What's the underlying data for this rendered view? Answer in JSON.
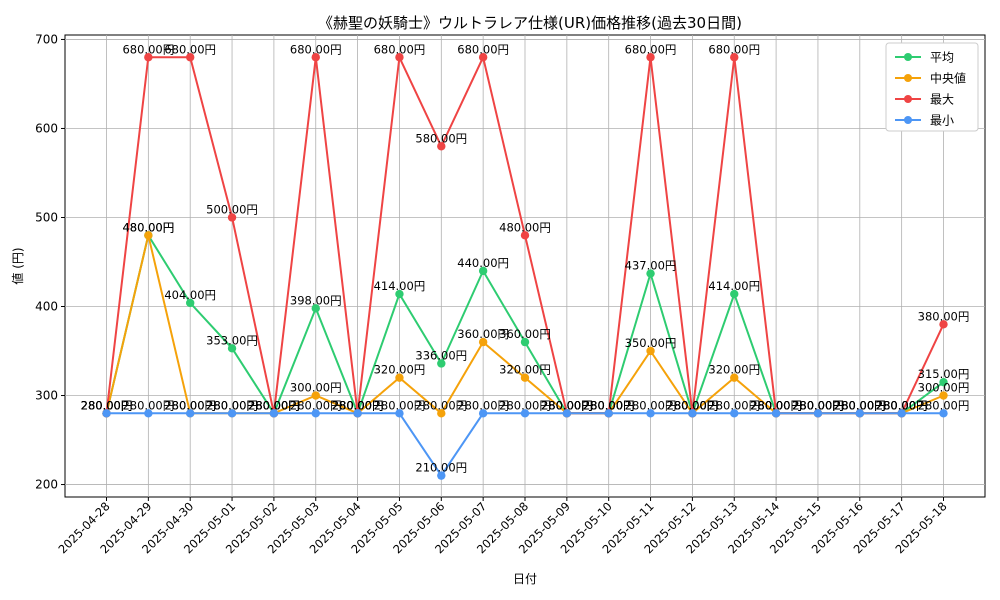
{
  "chart_data": {
    "type": "line",
    "title": "《赫聖の妖騎士》ウルトラレア仕様(UR)価格推移(過去30日間)",
    "xlabel": "日付",
    "ylabel": "値 (円)",
    "ylim": [
      186,
      705
    ],
    "yticks": [
      200,
      300,
      400,
      500,
      600,
      700
    ],
    "grid": true,
    "legend_position": "top-right",
    "label_suffix": "円",
    "categories": [
      "2025-04-28",
      "2025-04-29",
      "2025-04-30",
      "2025-05-01",
      "2025-05-02",
      "2025-05-03",
      "2025-05-04",
      "2025-05-05",
      "2025-05-06",
      "2025-05-07",
      "2025-05-08",
      "2025-05-09",
      "2025-05-10",
      "2025-05-11",
      "2025-05-12",
      "2025-05-13",
      "2025-05-14",
      "2025-05-15",
      "2025-05-16",
      "2025-05-17",
      "2025-05-18"
    ],
    "series": [
      {
        "name": "平均",
        "color": "#2ecc71",
        "values": [
          280,
          480,
          404,
          353,
          280,
          398,
          280,
          414,
          336,
          440,
          360,
          280,
          280,
          437,
          280,
          414,
          280,
          280,
          280,
          280,
          315
        ]
      },
      {
        "name": "中央値",
        "color": "#f5a20a",
        "values": [
          280,
          480,
          280,
          280,
          280,
          300,
          280,
          320,
          280,
          360,
          320,
          280,
          280,
          350,
          280,
          320,
          280,
          280,
          280,
          280,
          300
        ]
      },
      {
        "name": "最大",
        "color": "#ef4444",
        "values": [
          280,
          680,
          680,
          500,
          280,
          680,
          280,
          680,
          580,
          680,
          480,
          280,
          280,
          680,
          280,
          680,
          280,
          280,
          280,
          280,
          380
        ]
      },
      {
        "name": "最小",
        "color": "#4d96f5",
        "values": [
          280,
          280,
          280,
          280,
          280,
          280,
          280,
          280,
          210,
          280,
          280,
          280,
          280,
          280,
          280,
          280,
          280,
          280,
          280,
          280,
          280
        ]
      }
    ]
  }
}
